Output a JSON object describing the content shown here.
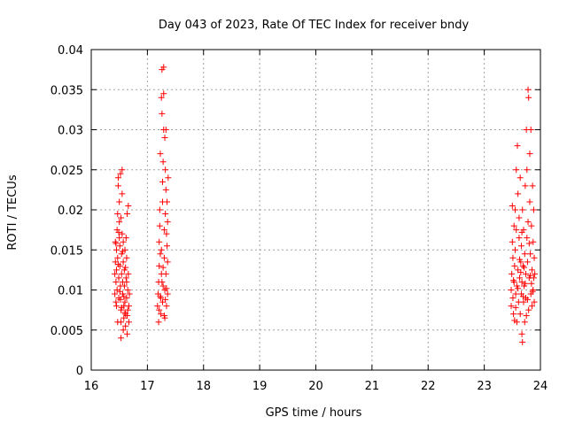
{
  "chart_data": {
    "type": "scatter",
    "title": "Day 043 of 2023, Rate Of TEC Index for receiver bndy",
    "xlabel": "GPS time / hours",
    "ylabel": "ROTI / TECUs",
    "xlim": [
      16,
      24
    ],
    "ylim": [
      0,
      0.04
    ],
    "x_ticks": [
      "16",
      "17",
      "18",
      "19",
      "20",
      "21",
      "22",
      "23",
      "24"
    ],
    "y_ticks": [
      "0",
      "0.005",
      "0.01",
      "0.015",
      "0.02",
      "0.025",
      "0.03",
      "0.035",
      "0.04"
    ],
    "grid": true,
    "marker": "+",
    "marker_color": "#ff0000",
    "series": [
      {
        "points": [
          [
            16.42,
            0.012
          ],
          [
            16.42,
            0.0095
          ],
          [
            16.43,
            0.0135
          ],
          [
            16.43,
            0.016
          ],
          [
            16.44,
            0.011
          ],
          [
            16.44,
            0.0085
          ],
          [
            16.45,
            0.015
          ],
          [
            16.45,
            0.0125
          ],
          [
            16.46,
            0.0175
          ],
          [
            16.46,
            0.01
          ],
          [
            16.47,
            0.014
          ],
          [
            16.47,
            0.0195
          ],
          [
            16.48,
            0.024
          ],
          [
            16.48,
            0.023
          ],
          [
            16.49,
            0.0115
          ],
          [
            16.49,
            0.009
          ],
          [
            16.5,
            0.021
          ],
          [
            16.5,
            0.0185
          ],
          [
            16.5,
            0.0165
          ],
          [
            16.51,
            0.013
          ],
          [
            16.51,
            0.0155
          ],
          [
            16.52,
            0.0245
          ],
          [
            16.52,
            0.0105
          ],
          [
            16.53,
            0.0075
          ],
          [
            16.53,
            0.006
          ],
          [
            16.53,
            0.004
          ],
          [
            16.54,
            0.012
          ],
          [
            16.54,
            0.0145
          ],
          [
            16.55,
            0.017
          ],
          [
            16.55,
            0.025
          ],
          [
            16.55,
            0.022
          ],
          [
            16.56,
            0.011
          ],
          [
            16.56,
            0.0095
          ],
          [
            16.57,
            0.0135
          ],
          [
            16.57,
            0.016
          ],
          [
            16.58,
            0.008
          ],
          [
            16.58,
            0.0065
          ],
          [
            16.59,
            0.0105
          ],
          [
            16.59,
            0.0125
          ],
          [
            16.6,
            0.015
          ],
          [
            16.6,
            0.0085
          ],
          [
            16.61,
            0.007
          ],
          [
            16.61,
            0.0055
          ],
          [
            16.62,
            0.0115
          ],
          [
            16.62,
            0.0165
          ],
          [
            16.63,
            0.014
          ],
          [
            16.63,
            0.009
          ],
          [
            16.64,
            0.0195
          ],
          [
            16.64,
            0.0045
          ],
          [
            16.65,
            0.0075
          ],
          [
            16.65,
            0.01
          ],
          [
            16.66,
            0.0205
          ],
          [
            16.66,
            0.012
          ],
          [
            16.67,
            0.008
          ],
          [
            16.67,
            0.006
          ],
          [
            16.68,
            0.0095
          ],
          [
            16.45,
            0.008
          ],
          [
            16.47,
            0.006
          ],
          [
            16.52,
            0.0088
          ],
          [
            16.57,
            0.005
          ],
          [
            16.6,
            0.0072
          ],
          [
            16.63,
            0.011
          ],
          [
            16.48,
            0.0132
          ],
          [
            16.51,
            0.0098
          ],
          [
            16.54,
            0.0078
          ],
          [
            16.58,
            0.0092
          ],
          [
            16.61,
            0.0128
          ],
          [
            16.64,
            0.0068
          ],
          [
            16.44,
            0.0158
          ],
          [
            16.49,
            0.0172
          ],
          [
            16.53,
            0.019
          ],
          [
            16.56,
            0.0148
          ],
          [
            17.18,
            0.008
          ],
          [
            17.19,
            0.0095
          ],
          [
            17.2,
            0.006
          ],
          [
            17.2,
            0.011
          ],
          [
            17.21,
            0.013
          ],
          [
            17.21,
            0.016
          ],
          [
            17.22,
            0.018
          ],
          [
            17.22,
            0.02
          ],
          [
            17.23,
            0.0145
          ],
          [
            17.23,
            0.027
          ],
          [
            17.24,
            0.009
          ],
          [
            17.24,
            0.007
          ],
          [
            17.25,
            0.012
          ],
          [
            17.25,
            0.015
          ],
          [
            17.25,
            0.034
          ],
          [
            17.26,
            0.0375
          ],
          [
            17.26,
            0.032
          ],
          [
            17.27,
            0.021
          ],
          [
            17.27,
            0.0235
          ],
          [
            17.27,
            0.0085
          ],
          [
            17.28,
            0.0105
          ],
          [
            17.28,
            0.026
          ],
          [
            17.29,
            0.03
          ],
          [
            17.29,
            0.0345
          ],
          [
            17.29,
            0.0378
          ],
          [
            17.3,
            0.0175
          ],
          [
            17.3,
            0.014
          ],
          [
            17.31,
            0.0065
          ],
          [
            17.31,
            0.01
          ],
          [
            17.31,
            0.029
          ],
          [
            17.32,
            0.025
          ],
          [
            17.32,
            0.0195
          ],
          [
            17.33,
            0.0225
          ],
          [
            17.33,
            0.03
          ],
          [
            17.33,
            0.012
          ],
          [
            17.34,
            0.017
          ],
          [
            17.34,
            0.008
          ],
          [
            17.35,
            0.0155
          ],
          [
            17.35,
            0.021
          ],
          [
            17.36,
            0.0185
          ],
          [
            17.36,
            0.0095
          ],
          [
            17.37,
            0.024
          ],
          [
            17.21,
            0.0075
          ],
          [
            17.23,
            0.0092
          ],
          [
            17.26,
            0.011
          ],
          [
            17.28,
            0.0128
          ],
          [
            17.3,
            0.0068
          ],
          [
            17.32,
            0.0088
          ],
          [
            17.34,
            0.0102
          ],
          [
            17.36,
            0.0135
          ],
          [
            23.48,
            0.01
          ],
          [
            23.48,
            0.008
          ],
          [
            23.49,
            0.012
          ],
          [
            23.5,
            0.016
          ],
          [
            23.5,
            0.0205
          ],
          [
            23.51,
            0.009
          ],
          [
            23.51,
            0.014
          ],
          [
            23.52,
            0.007
          ],
          [
            23.53,
            0.011
          ],
          [
            23.53,
            0.018
          ],
          [
            23.54,
            0.013
          ],
          [
            23.55,
            0.02
          ],
          [
            23.55,
            0.015
          ],
          [
            23.56,
            0.0095
          ],
          [
            23.57,
            0.025
          ],
          [
            23.57,
            0.0175
          ],
          [
            23.58,
            0.0105
          ],
          [
            23.58,
            0.006
          ],
          [
            23.59,
            0.028
          ],
          [
            23.6,
            0.022
          ],
          [
            23.6,
            0.0125
          ],
          [
            23.61,
            0.0085
          ],
          [
            23.62,
            0.0165
          ],
          [
            23.62,
            0.019
          ],
          [
            23.63,
            0.0115
          ],
          [
            23.64,
            0.007
          ],
          [
            23.64,
            0.024
          ],
          [
            23.65,
            0.0135
          ],
          [
            23.66,
            0.0095
          ],
          [
            23.66,
            0.0155
          ],
          [
            23.67,
            0.0045
          ],
          [
            23.67,
            0.011
          ],
          [
            23.68,
            0.0035
          ],
          [
            23.68,
            0.02
          ],
          [
            23.69,
            0.013
          ],
          [
            23.7,
            0.0085
          ],
          [
            23.7,
            0.0175
          ],
          [
            23.71,
            0.0105
          ],
          [
            23.72,
            0.006
          ],
          [
            23.72,
            0.0145
          ],
          [
            23.73,
            0.023
          ],
          [
            23.74,
            0.012
          ],
          [
            23.74,
            0.009
          ],
          [
            23.75,
            0.03
          ],
          [
            23.76,
            0.0165
          ],
          [
            23.76,
            0.025
          ],
          [
            23.77,
            0.0135
          ],
          [
            23.78,
            0.035
          ],
          [
            23.78,
            0.0185
          ],
          [
            23.79,
            0.0075
          ],
          [
            23.79,
            0.034
          ],
          [
            23.8,
            0.0115
          ],
          [
            23.81,
            0.021
          ],
          [
            23.81,
            0.027
          ],
          [
            23.82,
            0.0145
          ],
          [
            23.83,
            0.0095
          ],
          [
            23.83,
            0.03
          ],
          [
            23.84,
            0.018
          ],
          [
            23.85,
            0.0125
          ],
          [
            23.85,
            0.008
          ],
          [
            23.86,
            0.023
          ],
          [
            23.87,
            0.016
          ],
          [
            23.87,
            0.01
          ],
          [
            23.88,
            0.02
          ],
          [
            23.88,
            0.0115
          ],
          [
            23.89,
            0.014
          ],
          [
            23.89,
            0.0085
          ],
          [
            23.9,
            0.012
          ],
          [
            23.52,
            0.0112
          ],
          [
            23.56,
            0.0078
          ],
          [
            23.6,
            0.0102
          ],
          [
            23.65,
            0.0122
          ],
          [
            23.69,
            0.0092
          ],
          [
            23.73,
            0.0108
          ],
          [
            23.77,
            0.0088
          ],
          [
            23.82,
            0.0118
          ],
          [
            23.86,
            0.0098
          ],
          [
            23.54,
            0.0062
          ],
          [
            23.63,
            0.0138
          ],
          [
            23.71,
            0.0128
          ],
          [
            23.8,
            0.0158
          ],
          [
            23.84,
            0.0108
          ],
          [
            23.75,
            0.0068
          ],
          [
            23.67,
            0.0172
          ]
        ]
      }
    ]
  }
}
